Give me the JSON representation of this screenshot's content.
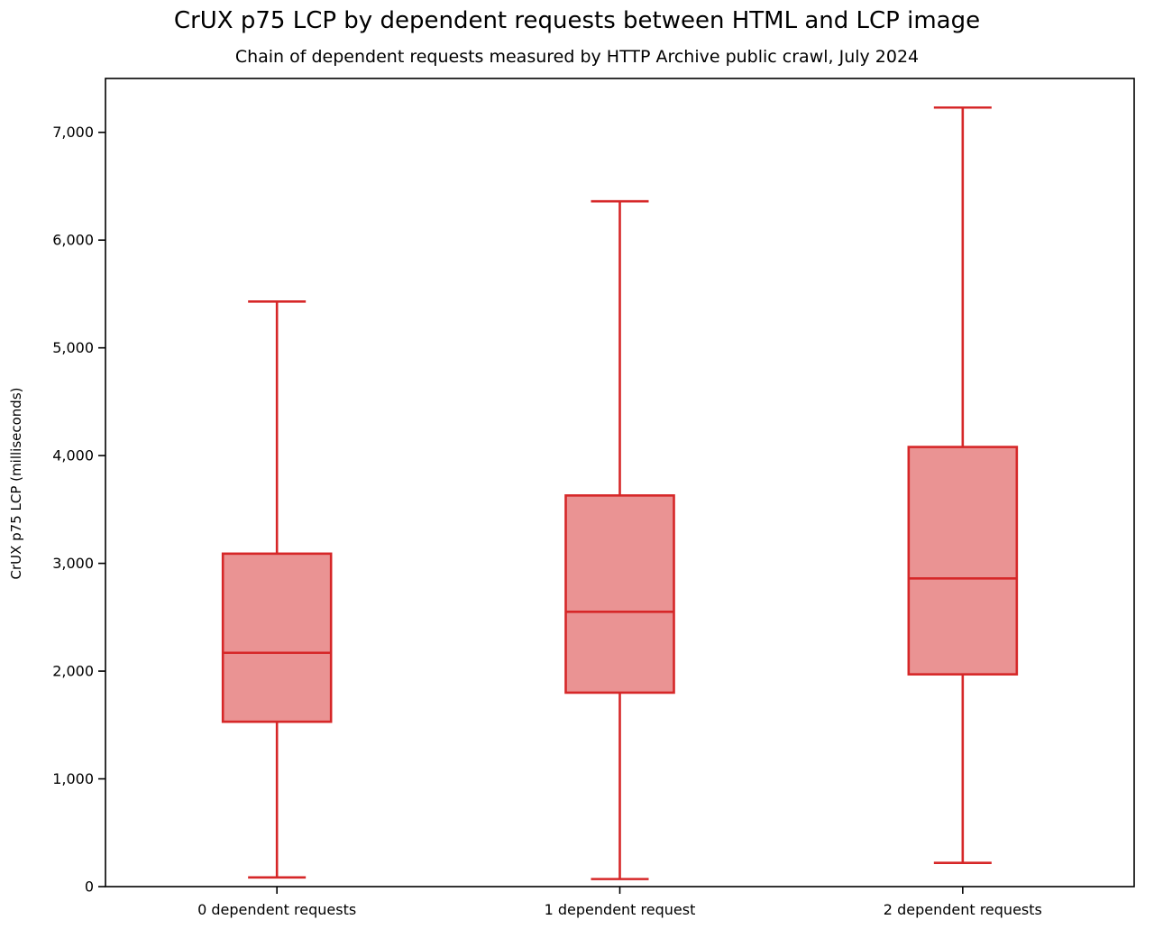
{
  "chart": {
    "title": "CrUX p75 LCP by dependent requests between HTML and LCP image",
    "subtitle": "Chain of dependent requests measured by HTTP Archive public crawl, July 2024",
    "ylabel": "CrUX p75 LCP (milliseconds)"
  },
  "chart_data": {
    "type": "boxplot",
    "title": "CrUX p75 LCP by dependent requests between HTML and LCP image",
    "subtitle": "Chain of dependent requests measured by HTTP Archive public crawl, July 2024",
    "xlabel": "",
    "ylabel": "CrUX p75 LCP (milliseconds)",
    "categories": [
      "0 dependent requests",
      "1 dependent request",
      "2 dependent requests"
    ],
    "series": [
      {
        "name": "0 dependent requests",
        "whisker_low": 85,
        "q1": 1530,
        "median": 2170,
        "q3": 3090,
        "whisker_high": 5430
      },
      {
        "name": "1 dependent request",
        "whisker_low": 70,
        "q1": 1800,
        "median": 2550,
        "q3": 3630,
        "whisker_high": 6360
      },
      {
        "name": "2 dependent requests",
        "whisker_low": 220,
        "q1": 1970,
        "median": 2860,
        "q3": 4080,
        "whisker_high": 7230
      }
    ],
    "ylim": [
      0,
      7500
    ],
    "yticks": [
      0,
      1000,
      2000,
      3000,
      4000,
      5000,
      6000,
      7000
    ],
    "ytick_labels": [
      "0",
      "1,000",
      "2,000",
      "3,000",
      "4,000",
      "5,000",
      "6,000",
      "7,000"
    ],
    "grid": false,
    "legend": "none",
    "colors": {
      "box_line": "#d62728",
      "box_fill": "#ea9393",
      "axis": "#000000",
      "background": "#ffffff"
    }
  }
}
